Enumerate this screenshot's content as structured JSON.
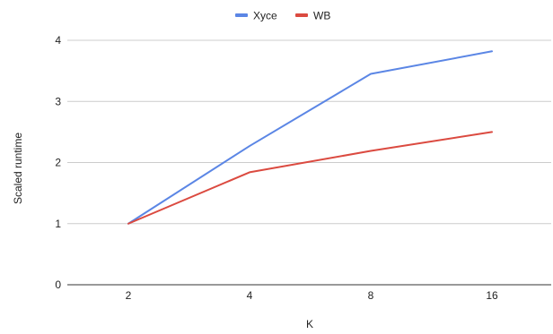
{
  "chart_data": {
    "type": "line",
    "title": "",
    "xlabel": "K",
    "ylabel": "Scaled runtime",
    "categories": [
      "2",
      "4",
      "8",
      "16"
    ],
    "ylim": [
      0,
      4
    ],
    "yticks": [
      "0",
      "1",
      "2",
      "3",
      "4"
    ],
    "grid": true,
    "legend_position": "top-center",
    "series": [
      {
        "name": "Xyce",
        "color": "#5b86e5",
        "values": [
          1.0,
          2.27,
          3.45,
          3.82
        ]
      },
      {
        "name": "WB",
        "color": "#db4a40",
        "values": [
          1.0,
          1.84,
          2.19,
          2.5
        ]
      }
    ]
  }
}
